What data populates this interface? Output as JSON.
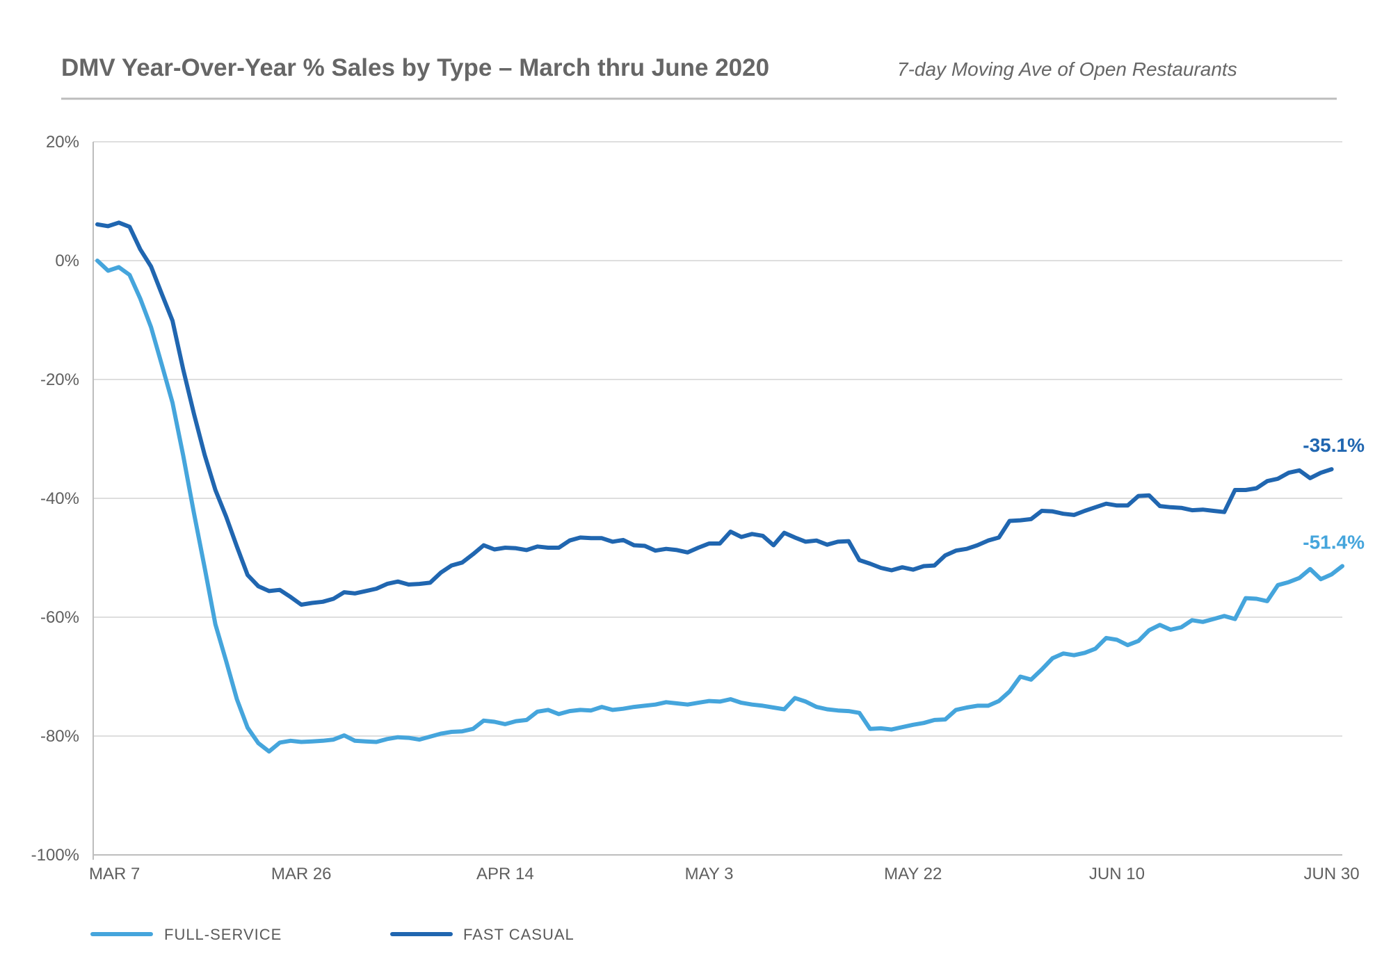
{
  "chart_data": {
    "type": "line",
    "title": "DMV Year-Over-Year % Sales by Type – March thru June 2020",
    "subtitle": "7-day Moving Ave of Open Restaurants",
    "xlabel": "",
    "ylabel": "",
    "ylim": [
      -100,
      20
    ],
    "y_ticks": [
      20,
      0,
      -20,
      -40,
      -60,
      -80,
      -100
    ],
    "y_tick_labels": [
      "20%",
      "0%",
      "-20%",
      "-40%",
      "-60%",
      "-80%",
      "-100%"
    ],
    "x_start": "Mar 7",
    "x_end": "Jun 30",
    "x_tick_labels": [
      {
        "day": 0,
        "label": "MAR 7"
      },
      {
        "day": 19,
        "label": "MAR 26"
      },
      {
        "day": 38,
        "label": "APR 14"
      },
      {
        "day": 57,
        "label": "MAY 3"
      },
      {
        "day": 76,
        "label": "MAY 22"
      },
      {
        "day": 95,
        "label": "JUN 10"
      },
      {
        "day": 115,
        "label": "JUN 30"
      }
    ],
    "grid": true,
    "legend_position": "bottom-left",
    "series": [
      {
        "name": "FULL-SERVICE",
        "color": "#45a5dc",
        "end_label": "-51.4%",
        "values": [
          0,
          -1.7,
          -1.1,
          -2.4,
          -6.4,
          -11.2,
          -17.5,
          -23.9,
          -32.8,
          -42.5,
          -51.7,
          -61.2,
          -67.4,
          -73.8,
          -78.6,
          -81.2,
          -82.6,
          -81.1,
          -80.8,
          -81.0,
          -80.9,
          -80.8,
          -80.6,
          -79.9,
          -80.8,
          -80.9,
          -81.0,
          -80.5,
          -80.2,
          -80.3,
          -80.6,
          -80.1,
          -79.6,
          -79.3,
          -79.2,
          -78.8,
          -77.4,
          -77.6,
          -78.0,
          -77.5,
          -77.3,
          -75.9,
          -75.6,
          -76.3,
          -75.8,
          -75.6,
          -75.7,
          -75.1,
          -75.6,
          -75.4,
          -75.1,
          -74.9,
          -74.7,
          -74.3,
          -74.5,
          -74.7,
          -74.4,
          -74.1,
          -74.2,
          -73.8,
          -74.4,
          -74.7,
          -74.9,
          -75.2,
          -75.5,
          -73.6,
          -74.2,
          -75.1,
          -75.5,
          -75.7,
          -75.8,
          -76.1,
          -78.8,
          -78.7,
          -78.9,
          -78.5,
          -78.1,
          -77.8,
          -77.3,
          -77.2,
          -75.6,
          -75.2,
          -74.9,
          -74.9,
          -74.1,
          -72.5,
          -70.0,
          -70.5,
          -68.8,
          -66.9,
          -66.1,
          -66.4,
          -66.0,
          -65.3,
          -63.5,
          -63.8,
          -64.7,
          -64.0,
          -62.2,
          -61.3,
          -62.1,
          -61.7,
          -60.5,
          -60.8,
          -60.3,
          -59.8,
          -60.3,
          -56.8,
          -56.9,
          -57.3,
          -54.6,
          -54.1,
          -53.4,
          -51.9,
          -53.6,
          -52.8,
          -51.4
        ]
      },
      {
        "name": "FAST CASUAL",
        "color": "#2066b0",
        "end_label": "-35.1%",
        "values": [
          6.1,
          5.8,
          6.4,
          5.7,
          1.9,
          -1.0,
          -5.6,
          -10.1,
          -18.3,
          -25.8,
          -32.7,
          -38.6,
          -43.1,
          -48.1,
          -52.9,
          -54.8,
          -55.6,
          -55.4,
          -56.6,
          -57.9,
          -57.6,
          -57.4,
          -56.9,
          -55.8,
          -56.0,
          -55.6,
          -55.2,
          -54.4,
          -54.0,
          -54.5,
          -54.4,
          -54.2,
          -52.5,
          -51.3,
          -50.8,
          -49.4,
          -47.9,
          -48.6,
          -48.3,
          -48.4,
          -48.7,
          -48.1,
          -48.3,
          -48.3,
          -47.1,
          -46.6,
          -46.7,
          -46.7,
          -47.3,
          -47.0,
          -47.9,
          -48.0,
          -48.8,
          -48.5,
          -48.7,
          -49.1,
          -48.3,
          -47.6,
          -47.6,
          -45.6,
          -46.5,
          -46.0,
          -46.3,
          -47.9,
          -45.8,
          -46.6,
          -47.3,
          -47.1,
          -47.8,
          -47.3,
          -47.2,
          -50.4,
          -51.0,
          -51.7,
          -52.1,
          -51.6,
          -52.0,
          -51.4,
          -51.3,
          -49.6,
          -48.8,
          -48.5,
          -47.9,
          -47.1,
          -46.6,
          -43.8,
          -43.7,
          -43.5,
          -42.1,
          -42.2,
          -42.6,
          -42.8,
          -42.1,
          -41.5,
          -40.9,
          -41.2,
          -41.2,
          -39.6,
          -39.5,
          -41.3,
          -41.5,
          -41.6,
          -42.0,
          -41.9,
          -42.1,
          -42.3,
          -38.6,
          -38.6,
          -38.3,
          -37.1,
          -36.7,
          -35.7,
          -35.3,
          -36.6,
          -35.7,
          -35.1
        ]
      }
    ]
  }
}
